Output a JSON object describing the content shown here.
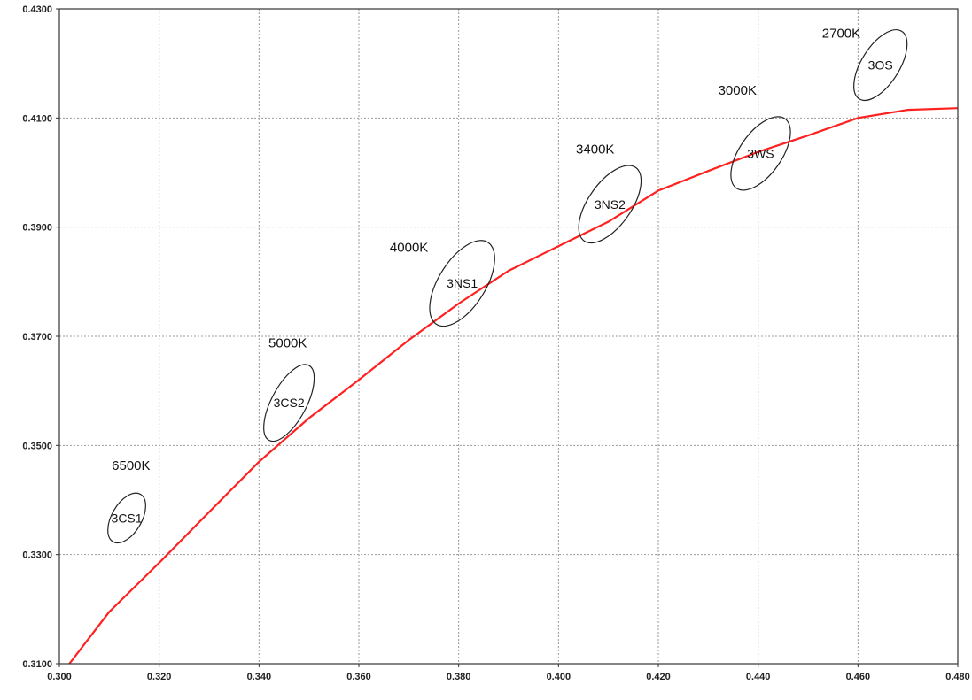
{
  "chart_data": {
    "type": "line",
    "title": "",
    "xlabel": "",
    "ylabel": "",
    "xlim": [
      0.3,
      0.48
    ],
    "ylim": [
      0.31,
      0.43
    ],
    "grid": true,
    "x_ticks": [
      "0.300",
      "0.320",
      "0.340",
      "0.360",
      "0.380",
      "0.400",
      "0.420",
      "0.440",
      "0.460",
      "0.480"
    ],
    "y_ticks": [
      "0.3100",
      "0.3300",
      "0.3500",
      "0.3700",
      "0.3900",
      "0.4100",
      "0.4300"
    ],
    "series": [
      {
        "color": "#ff2020",
        "x": [
          0.302,
          0.31,
          0.32,
          0.33,
          0.34,
          0.35,
          0.36,
          0.37,
          0.38,
          0.39,
          0.4,
          0.41,
          0.42,
          0.43,
          0.44,
          0.45,
          0.46,
          0.47,
          0.48
        ],
        "y": [
          0.31,
          0.3195,
          0.3285,
          0.3378,
          0.347,
          0.355,
          0.362,
          0.3693,
          0.376,
          0.382,
          0.3865,
          0.391,
          0.3967,
          0.4003,
          0.4038,
          0.4068,
          0.41,
          0.4115,
          0.4118
        ]
      }
    ],
    "regions": [
      {
        "name": "3CS1",
        "cct": "6500K",
        "cx": 0.3135,
        "cy": 0.3367,
        "rx": 0.0055,
        "ry": 0.003,
        "angle_deg": -60
      },
      {
        "name": "3CS2",
        "cct": "5000K",
        "cx": 0.346,
        "cy": 0.3578,
        "rx": 0.0085,
        "ry": 0.0035,
        "angle_deg": -62
      },
      {
        "name": "3NS1",
        "cct": "4000K",
        "cx": 0.3807,
        "cy": 0.3797,
        "rx": 0.0097,
        "ry": 0.0047,
        "angle_deg": -58
      },
      {
        "name": "3NS2",
        "cct": "3400K",
        "cx": 0.4103,
        "cy": 0.3942,
        "rx": 0.009,
        "ry": 0.0043,
        "angle_deg": -55
      },
      {
        "name": "3WS",
        "cct": "3000K",
        "cx": 0.4405,
        "cy": 0.4035,
        "rx": 0.0085,
        "ry": 0.0042,
        "angle_deg": -55
      },
      {
        "name": "3OS",
        "cct": "2700K",
        "cx": 0.4645,
        "cy": 0.4197,
        "rx": 0.008,
        "ry": 0.0038,
        "angle_deg": -58
      }
    ],
    "cct_labels": [
      {
        "text": "6500K",
        "x": 0.3105,
        "y": 0.3455
      },
      {
        "text": "5000K",
        "x": 0.3419,
        "y": 0.368
      },
      {
        "text": "4000K",
        "x": 0.3662,
        "y": 0.3855
      },
      {
        "text": "3400K",
        "x": 0.4035,
        "y": 0.4035
      },
      {
        "text": "3000K",
        "x": 0.432,
        "y": 0.4143
      },
      {
        "text": "2700K",
        "x": 0.4528,
        "y": 0.4247
      }
    ]
  }
}
